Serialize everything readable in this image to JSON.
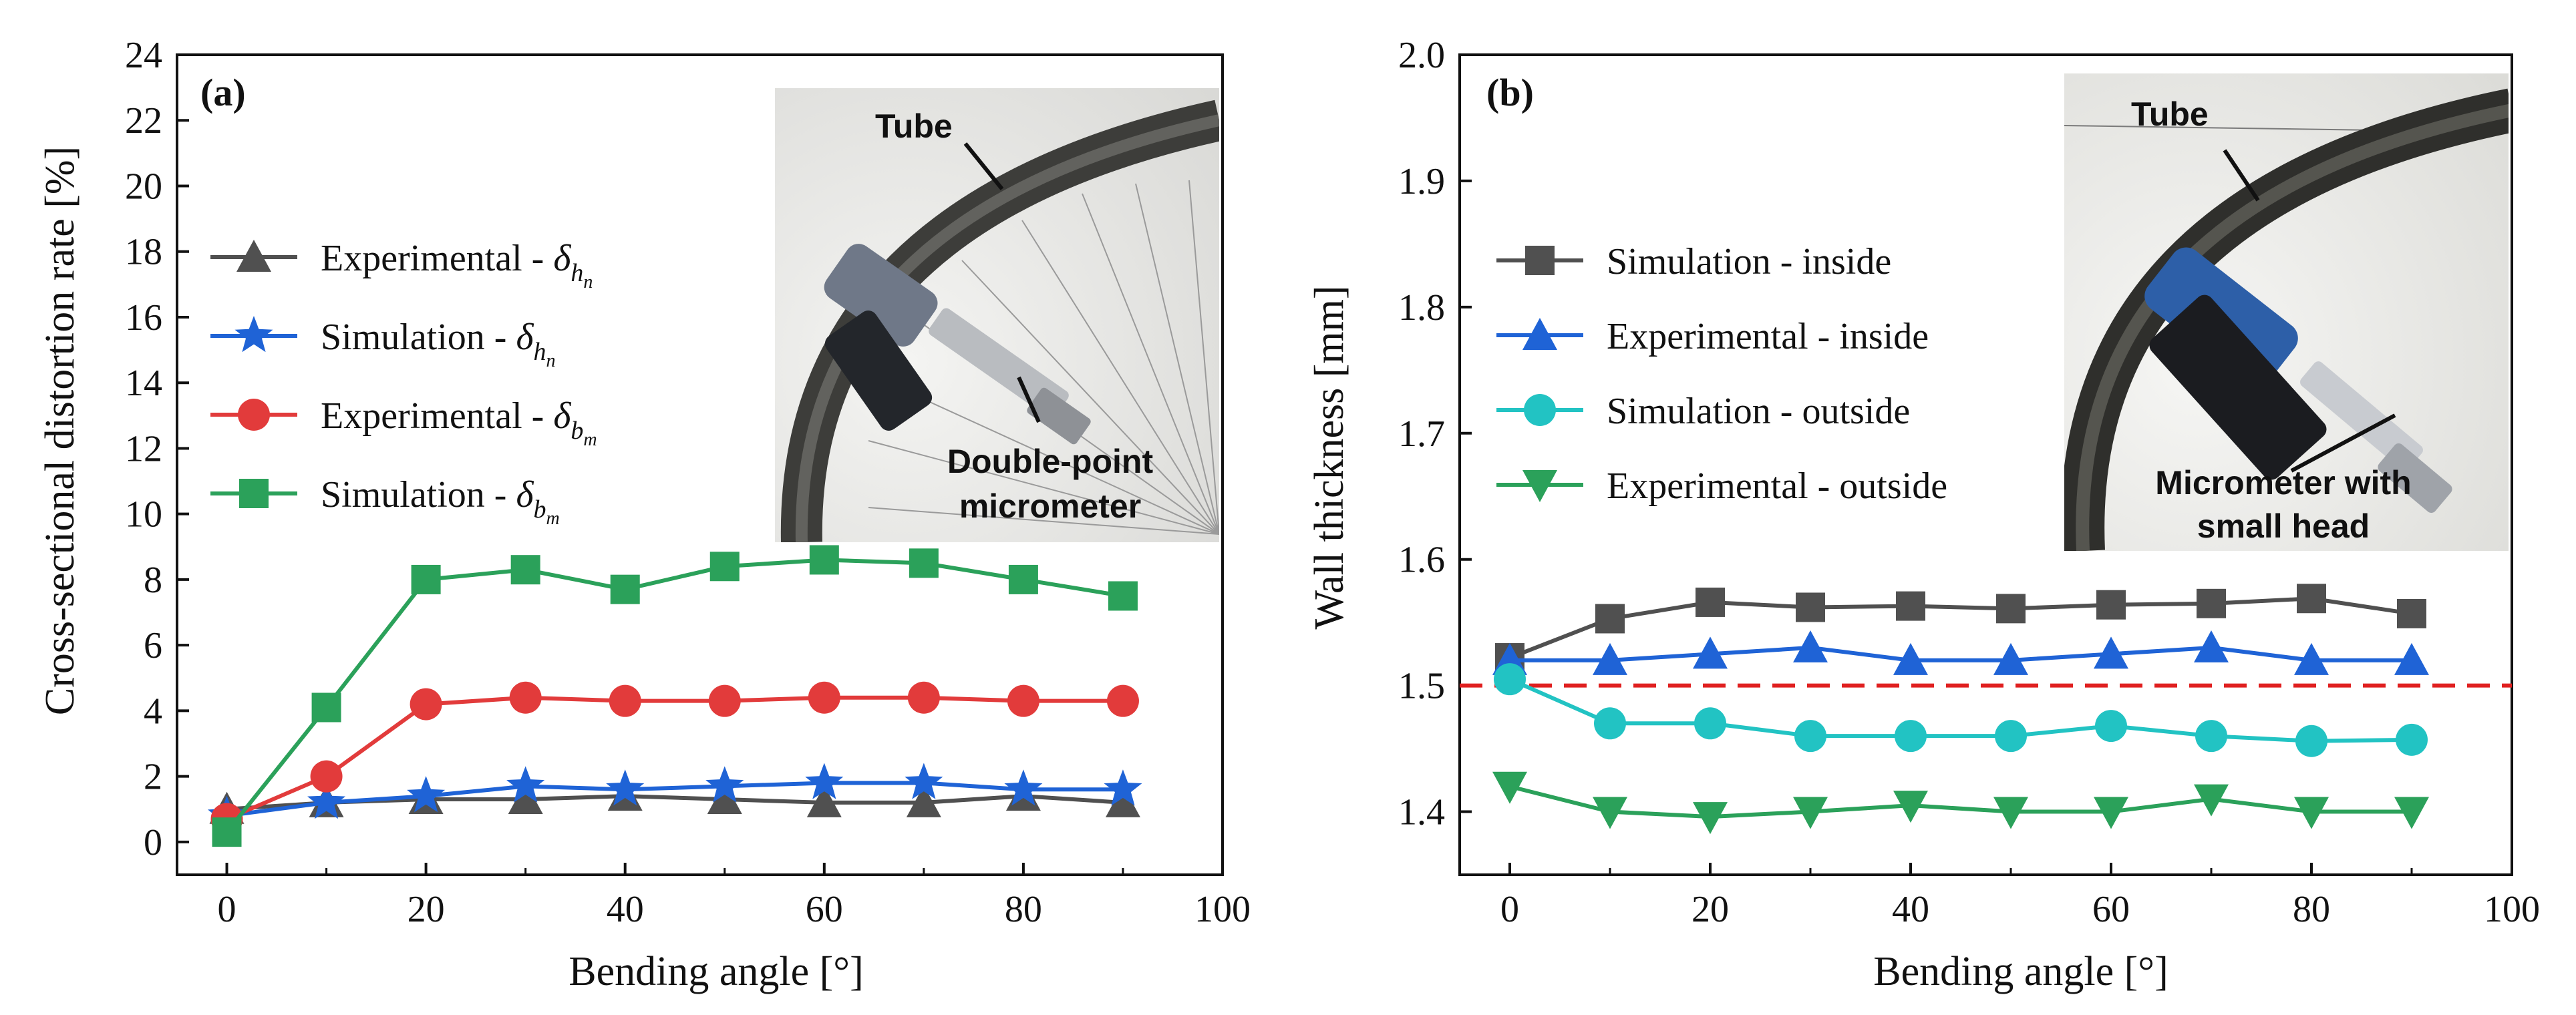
{
  "chart_data": [
    {
      "type": "line",
      "panel_label": "(a)",
      "xlabel": "Bending angle [°]",
      "ylabel": "Cross-sectional distortion rate [%]",
      "xlim": [
        -5,
        100
      ],
      "ylim": [
        -1,
        24
      ],
      "x_ticks": [
        0,
        20,
        40,
        60,
        80,
        100
      ],
      "y_ticks": [
        0,
        2,
        4,
        6,
        8,
        10,
        12,
        14,
        16,
        18,
        20,
        22,
        24
      ],
      "legend_position": "left",
      "x": [
        0,
        10,
        20,
        30,
        40,
        50,
        60,
        70,
        80,
        90
      ],
      "series": [
        {
          "name": "Experimental - ",
          "symbol": "δ",
          "subscript": "h",
          "subsubscript": "n",
          "color": "#505050",
          "marker": "triangle-up",
          "values": [
            1.0,
            1.2,
            1.3,
            1.3,
            1.4,
            1.3,
            1.2,
            1.2,
            1.4,
            1.2
          ]
        },
        {
          "name": "Simulation - ",
          "symbol": "δ",
          "subscript": "h",
          "subsubscript": "n",
          "color": "#1f63d6",
          "marker": "star",
          "values": [
            0.8,
            1.2,
            1.4,
            1.7,
            1.6,
            1.7,
            1.8,
            1.8,
            1.6,
            1.6
          ]
        },
        {
          "name": "Experimental - ",
          "symbol": "δ",
          "subscript": "b",
          "subsubscript": "m",
          "color": "#e23b3b",
          "marker": "circle",
          "values": [
            0.7,
            2.0,
            4.2,
            4.4,
            4.3,
            4.3,
            4.4,
            4.4,
            4.3,
            4.3
          ]
        },
        {
          "name": "Simulation - ",
          "symbol": "δ",
          "subscript": "b",
          "subsubscript": "m",
          "color": "#2ba15a",
          "marker": "square",
          "values": [
            0.3,
            4.1,
            8.0,
            8.3,
            7.7,
            8.4,
            8.6,
            8.5,
            8.0,
            7.5
          ]
        }
      ],
      "inset": {
        "labels": [
          "Tube",
          "Double-point",
          "micrometer"
        ]
      }
    },
    {
      "type": "line",
      "panel_label": "(b)",
      "xlabel": "Bending angle [°]",
      "ylabel": "Wall thickness [mm]",
      "xlim": [
        -5,
        100
      ],
      "ylim": [
        1.35,
        2.0
      ],
      "x_ticks": [
        0,
        20,
        40,
        60,
        80,
        100
      ],
      "y_ticks": [
        1.4,
        1.5,
        1.6,
        1.7,
        1.8,
        1.9,
        2.0
      ],
      "legend_position": "left",
      "x": [
        0,
        10,
        20,
        30,
        40,
        50,
        60,
        70,
        80,
        90
      ],
      "series": [
        {
          "name": "Simulation - inside",
          "color": "#505050",
          "marker": "square",
          "values": [
            1.522,
            1.553,
            1.566,
            1.562,
            1.563,
            1.561,
            1.564,
            1.565,
            1.569,
            1.557
          ]
        },
        {
          "name": "Experimental - inside",
          "color": "#1f63d6",
          "marker": "triangle-up",
          "values": [
            1.52,
            1.52,
            1.525,
            1.53,
            1.52,
            1.52,
            1.525,
            1.53,
            1.52,
            1.52
          ]
        },
        {
          "name": "Simulation - outside",
          "color": "#22c3c3",
          "marker": "circle",
          "values": [
            1.505,
            1.47,
            1.47,
            1.46,
            1.46,
            1.46,
            1.468,
            1.46,
            1.456,
            1.457
          ]
        },
        {
          "name": "Experimental - outside",
          "color": "#2ba15a",
          "marker": "triangle-down",
          "values": [
            1.42,
            1.4,
            1.396,
            1.4,
            1.405,
            1.4,
            1.4,
            1.41,
            1.4,
            1.4
          ]
        }
      ],
      "reference_line": {
        "y": 1.5,
        "color": "#e02020",
        "style": "dashed"
      },
      "inset": {
        "labels": [
          "Tube",
          "Micrometer with",
          "small head"
        ]
      }
    }
  ]
}
